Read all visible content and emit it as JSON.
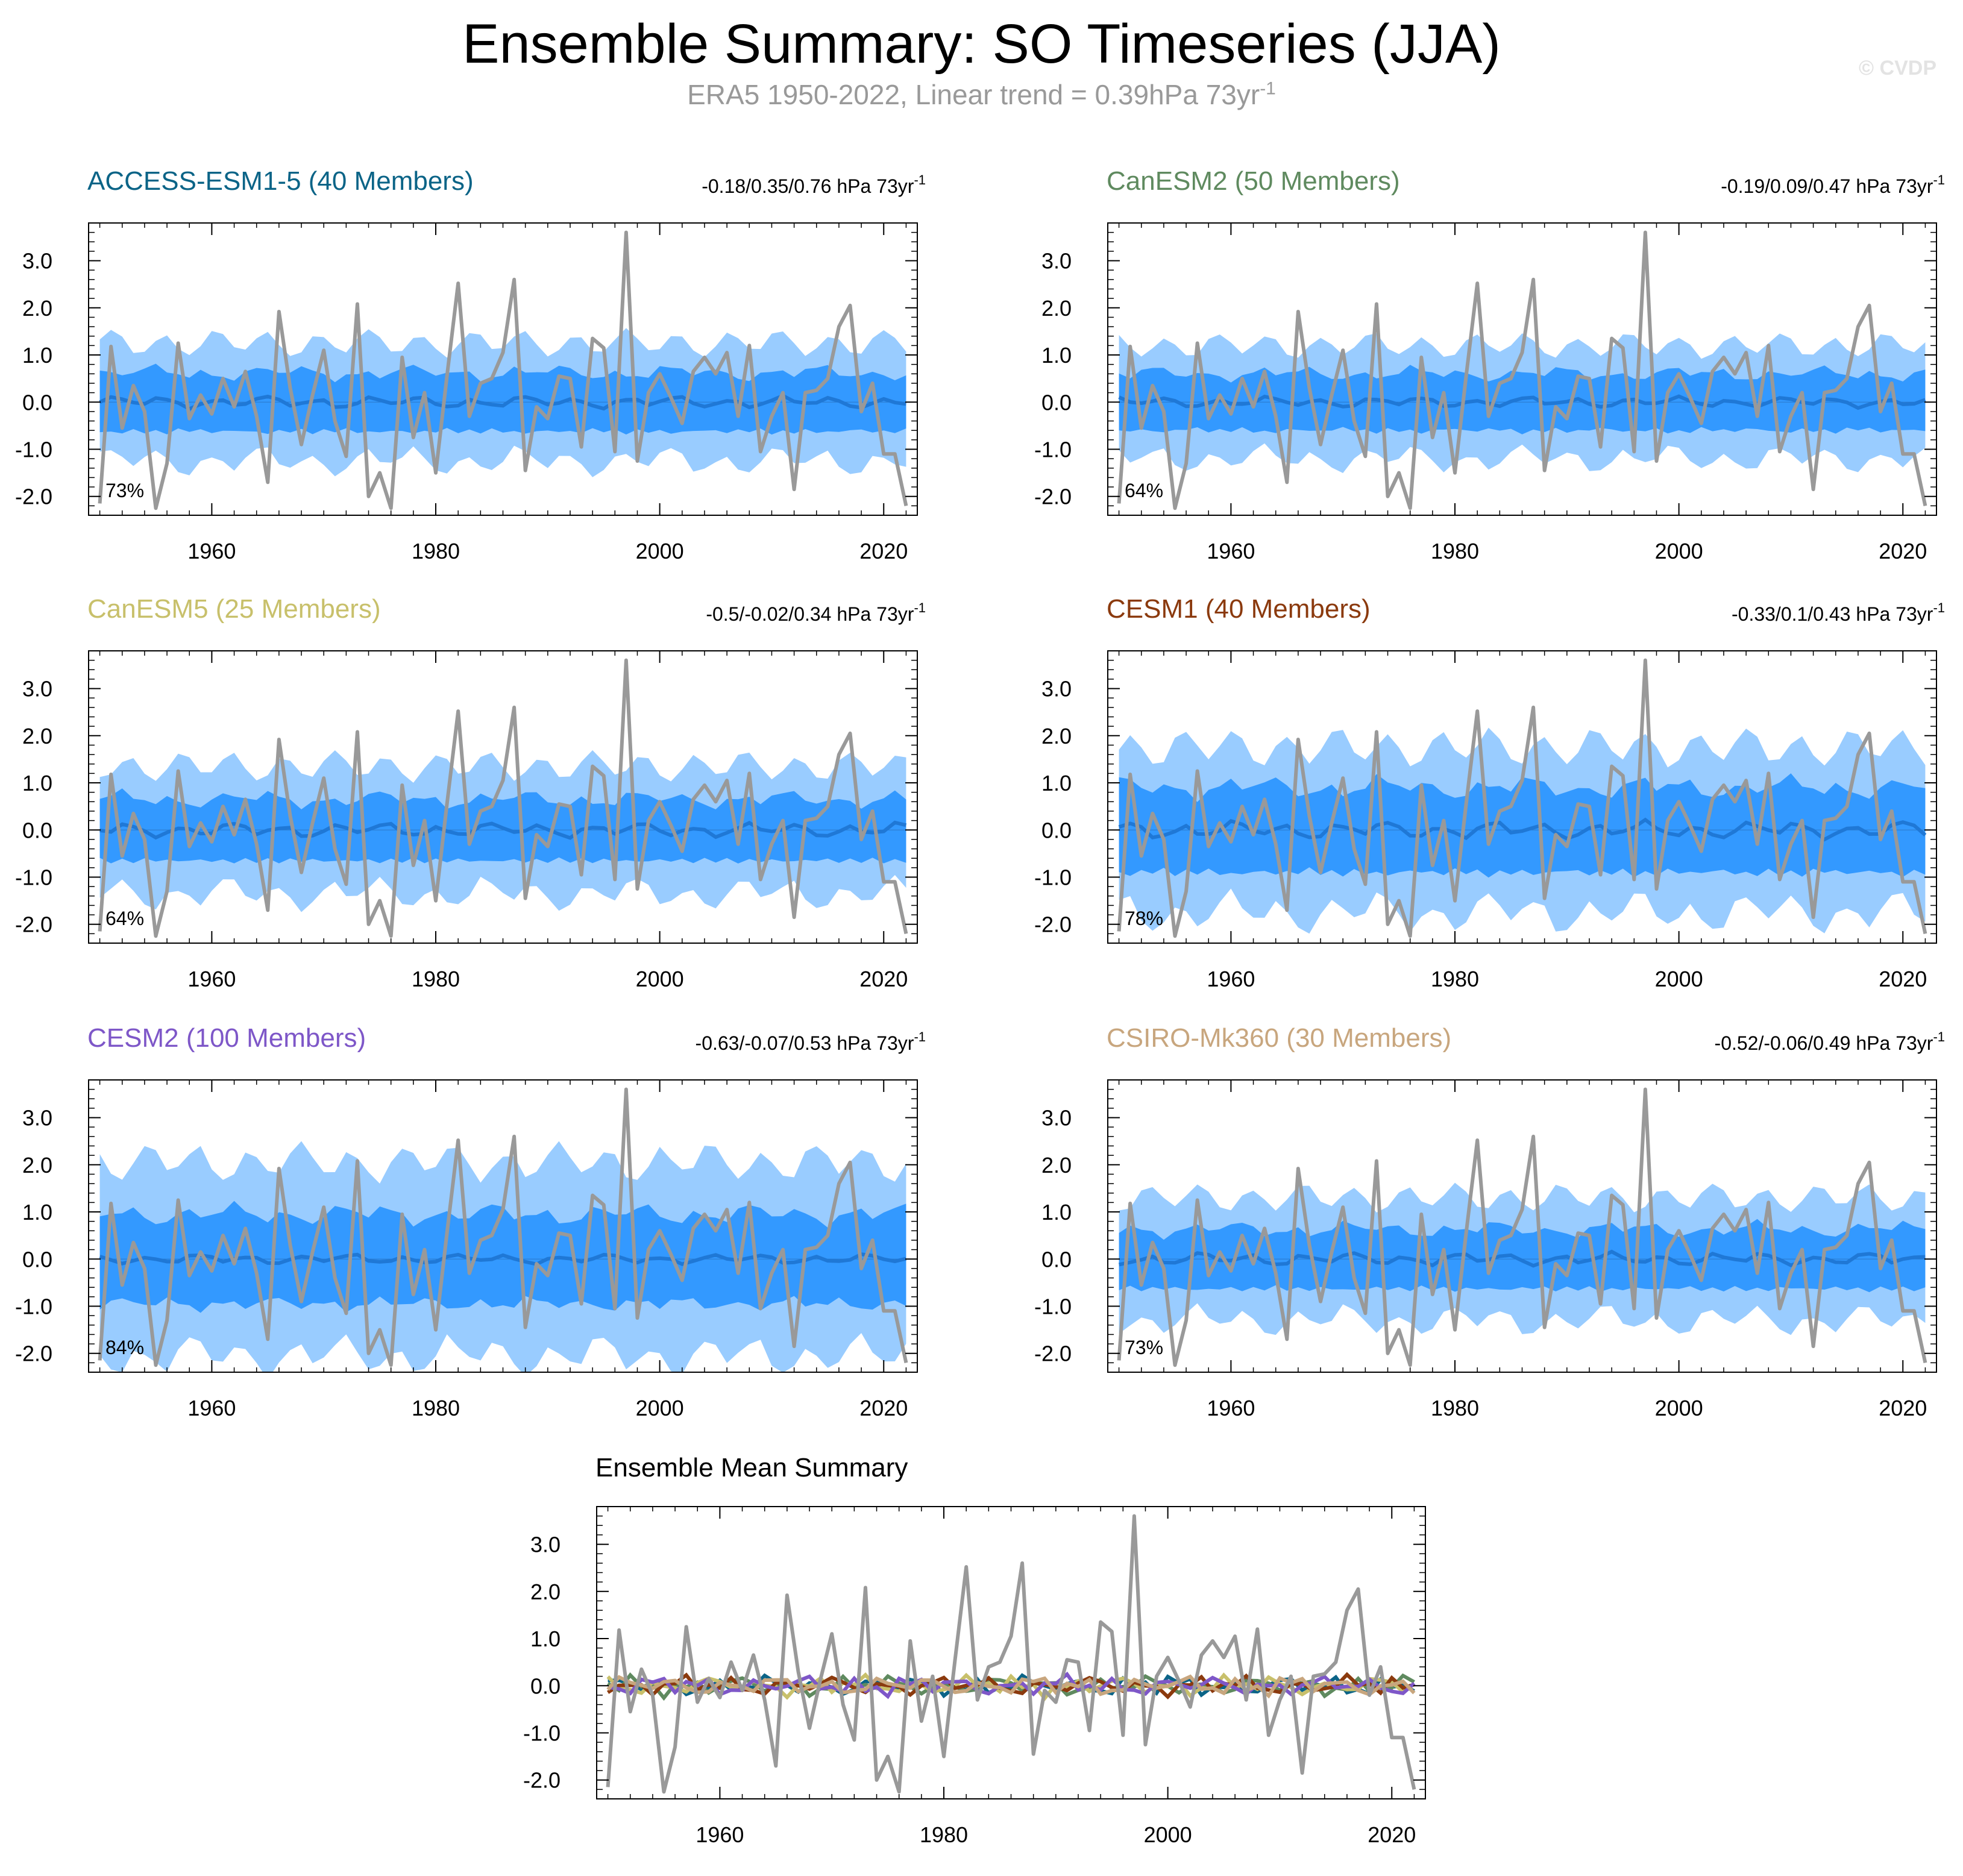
{
  "title": "Ensemble Summary: SO Timeseries (JJA)",
  "subtitle_main": "ERA5 1950-2022, Linear trend = 0.39hPa 73yr",
  "subtitle_sup": "-1",
  "watermark": "© CVDP",
  "colors": {
    "outer_band": "#99ccff",
    "inner_band": "#3399ff",
    "ensemble_mean_line": "#1f78d6",
    "observation_line": "#999999",
    "frame": "#000000"
  },
  "chart_data": [
    {
      "type": "area",
      "title": "ACCESS-ESM1-5 (40 Members)",
      "title_color": "#0b6487",
      "trend_text": "-0.18/0.35/0.76 hPa 73yr",
      "trend_sup": "-1",
      "pct_label": "73%",
      "xlim": [
        1949,
        2023
      ],
      "ylim": [
        -2.4,
        3.8
      ],
      "xticks": [
        1960,
        1980,
        2000,
        2020
      ],
      "yticks": [
        3.0,
        2.0,
        1.0,
        0.0,
        -1.0,
        -2.0
      ],
      "ytick_labels": [
        "3.0",
        "2.0",
        "1.0",
        "0.0",
        "-1.0",
        "-2.0"
      ],
      "band_outer_amp": 1.25,
      "band_inner_amp": 0.62,
      "mean_amp": 0.15
    },
    {
      "type": "area",
      "title": "CanESM2 (50 Members)",
      "title_color": "#5f8a5f",
      "trend_text": "-0.19/0.09/0.47 hPa 73yr",
      "trend_sup": "-1",
      "pct_label": "64%",
      "xlim": [
        1949,
        2023
      ],
      "ylim": [
        -2.4,
        3.8
      ],
      "xticks": [
        1960,
        1980,
        2000,
        2020
      ],
      "yticks": [
        3.0,
        2.0,
        1.0,
        0.0,
        -1.0,
        -2.0
      ],
      "ytick_labels": [
        "3.0",
        "2.0",
        "1.0",
        "0.0",
        "-1.0",
        "-2.0"
      ],
      "band_outer_amp": 1.2,
      "band_inner_amp": 0.6,
      "mean_amp": 0.13
    },
    {
      "type": "area",
      "title": "CanESM5 (25 Members)",
      "title_color": "#c8c06b",
      "trend_text": "-0.5/-0.02/0.34 hPa 73yr",
      "trend_sup": "-1",
      "pct_label": "64%",
      "xlim": [
        1949,
        2023
      ],
      "ylim": [
        -2.4,
        3.8
      ],
      "xticks": [
        1960,
        1980,
        2000,
        2020
      ],
      "yticks": [
        3.0,
        2.0,
        1.0,
        0.0,
        -1.0,
        -2.0
      ],
      "ytick_labels": [
        "3.0",
        "2.0",
        "1.0",
        "0.0",
        "-1.0",
        "-2.0"
      ],
      "band_outer_amp": 1.35,
      "band_inner_amp": 0.65,
      "mean_amp": 0.18
    },
    {
      "type": "area",
      "title": "CESM1 (40 Members)",
      "title_color": "#8b3a0e",
      "trend_text": "-0.33/0.1/0.43 hPa 73yr",
      "trend_sup": "-1",
      "pct_label": "78%",
      "xlim": [
        1949,
        2023
      ],
      "ylim": [
        -2.4,
        3.8
      ],
      "xticks": [
        1960,
        1980,
        2000,
        2020
      ],
      "yticks": [
        3.0,
        2.0,
        1.0,
        0.0,
        -1.0,
        -2.0
      ],
      "ytick_labels": [
        "3.0",
        "2.0",
        "1.0",
        "0.0",
        "-1.0",
        "-2.0"
      ],
      "band_outer_amp": 1.75,
      "band_inner_amp": 0.9,
      "mean_amp": 0.22
    },
    {
      "type": "area",
      "title": "CESM2 (100 Members)",
      "title_color": "#7e57c8",
      "trend_text": "-0.63/-0.07/0.53 hPa 73yr",
      "trend_sup": "-1",
      "pct_label": "84%",
      "xlim": [
        1949,
        2023
      ],
      "ylim": [
        -2.4,
        3.8
      ],
      "xticks": [
        1960,
        1980,
        2000,
        2020
      ],
      "yticks": [
        3.0,
        2.0,
        1.0,
        0.0,
        -1.0,
        -2.0
      ],
      "ytick_labels": [
        "3.0",
        "2.0",
        "1.0",
        "0.0",
        "-1.0",
        "-2.0"
      ],
      "band_outer_amp": 2.05,
      "band_inner_amp": 0.95,
      "mean_amp": 0.12
    },
    {
      "type": "area",
      "title": "CSIRO-Mk360 (30 Members)",
      "title_color": "#c8a67e",
      "trend_text": "-0.52/-0.06/0.49 hPa 73yr",
      "trend_sup": "-1",
      "pct_label": "73%",
      "xlim": [
        1949,
        2023
      ],
      "ylim": [
        -2.4,
        3.8
      ],
      "xticks": [
        1960,
        1980,
        2000,
        2020
      ],
      "yticks": [
        3.0,
        2.0,
        1.0,
        0.0,
        -1.0,
        -2.0
      ],
      "ytick_labels": [
        "3.0",
        "2.0",
        "1.0",
        "0.0",
        "-1.0",
        "-2.0"
      ],
      "band_outer_amp": 1.3,
      "band_inner_amp": 0.63,
      "mean_amp": 0.16
    },
    {
      "type": "line",
      "title": "Ensemble Mean Summary",
      "title_color": "#000000",
      "xlim": [
        1949,
        2023
      ],
      "ylim": [
        -2.4,
        3.8
      ],
      "xticks": [
        1960,
        1980,
        2000,
        2020
      ],
      "yticks": [
        3.0,
        2.0,
        1.0,
        0.0,
        -1.0,
        -2.0
      ],
      "ytick_labels": [
        "3.0",
        "2.0",
        "1.0",
        "0.0",
        "-1.0",
        "-2.0"
      ]
    }
  ],
  "observations_era5": {
    "x_start": 1950,
    "values": [
      -2.15,
      1.18,
      -0.55,
      0.35,
      -0.2,
      -2.25,
      -1.3,
      1.25,
      -0.35,
      0.15,
      -0.25,
      0.5,
      -0.1,
      0.65,
      -0.3,
      -1.7,
      1.92,
      0.3,
      -0.9,
      0.15,
      1.1,
      -0.4,
      -1.15,
      2.08,
      -2.0,
      -1.5,
      -2.25,
      0.95,
      -0.75,
      0.2,
      -1.5,
      0.55,
      2.52,
      -0.3,
      0.4,
      0.5,
      1.05,
      2.6,
      -1.45,
      -0.1,
      -0.35,
      0.55,
      0.5,
      -0.95,
      1.35,
      1.15,
      -1.05,
      3.6,
      -1.25,
      0.2,
      0.6,
      0.1,
      -0.45,
      0.65,
      0.95,
      0.6,
      1.05,
      -0.3,
      1.2,
      -1.05,
      -0.3,
      0.2,
      -1.85,
      0.2,
      0.25,
      0.5,
      1.6,
      2.05,
      -0.2,
      0.4,
      -1.1,
      -1.1,
      -2.2
    ]
  },
  "ensemble_means": [
    {
      "model": "ACCESS-ESM1-5",
      "color": "#0b6487"
    },
    {
      "model": "CanESM2",
      "color": "#5f8a5f"
    },
    {
      "model": "CanESM5",
      "color": "#c8c06b"
    },
    {
      "model": "CESM1",
      "color": "#8b3a0e"
    },
    {
      "model": "CESM2",
      "color": "#7e57c8"
    },
    {
      "model": "CSIRO-Mk360",
      "color": "#c8a67e"
    }
  ]
}
